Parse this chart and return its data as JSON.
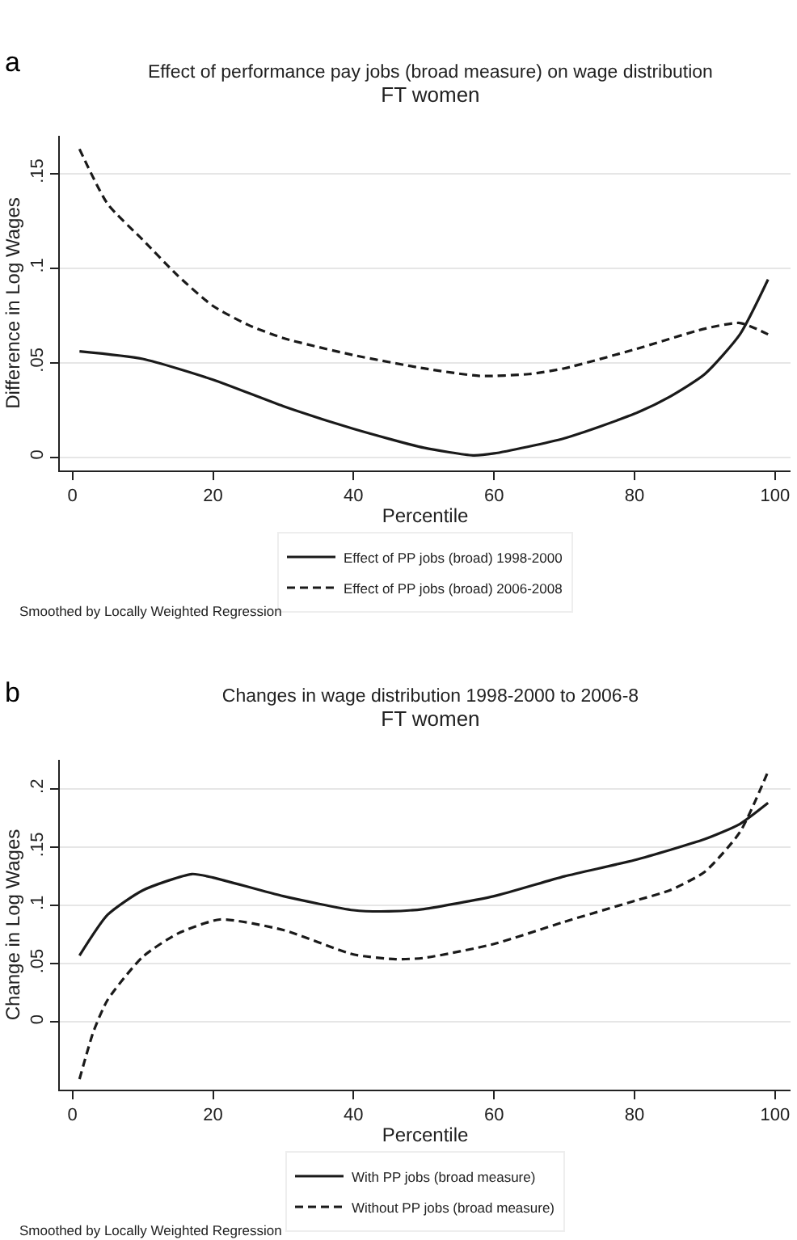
{
  "chart_data": [
    {
      "type": "line",
      "title": "Effect of performance pay jobs (broad measure) on wage distribution",
      "subtitle": "FT women",
      "xlabel": "Percentile",
      "ylabel": "Difference in Log Wages",
      "annotations": [
        "a",
        "Smoothed by Locally Weighted Regression"
      ],
      "xlim": [
        -1.8,
        102.2
      ],
      "xticks": [
        0,
        20,
        40,
        60,
        80,
        100
      ],
      "ylim": [
        -0.007,
        0.17
      ],
      "yticks": [
        0,
        {
          "value": 0.05,
          "label": ".05"
        },
        {
          "value": 0.1,
          "label": ".1"
        },
        {
          "value": 0.15,
          "label": ".15"
        }
      ],
      "grid": "y",
      "legend": "bottom",
      "series": [
        {
          "name": "Effect of PP jobs (broad) 1998-2000",
          "color": "#1a1a1a",
          "line_style": "solid",
          "x": [
            1,
            10,
            20,
            30,
            40,
            50,
            57,
            60,
            70,
            80,
            85,
            90,
            95,
            99
          ],
          "values": [
            0.056,
            0.052,
            0.041,
            0.027,
            0.015,
            0.005,
            0.001,
            0.002,
            0.01,
            0.023,
            0.032,
            0.044,
            0.065,
            0.094
          ]
        },
        {
          "name": "Effect of PP jobs (broad) 2006-2008",
          "color": "#1a1a1a",
          "line_style": "dashed",
          "x": [
            1,
            5,
            10,
            15,
            20,
            25,
            30,
            40,
            50,
            58,
            65,
            70,
            80,
            90,
            95,
            99
          ],
          "values": [
            0.163,
            0.134,
            0.115,
            0.096,
            0.08,
            0.07,
            0.063,
            0.054,
            0.047,
            0.043,
            0.044,
            0.047,
            0.057,
            0.068,
            0.071,
            0.065
          ]
        }
      ]
    },
    {
      "type": "line",
      "title": "Changes in wage distribution 1998-2000 to 2006-8",
      "subtitle": "FT women",
      "xlabel": "Percentile",
      "ylabel": "Change in Log Wages",
      "annotations": [
        "b",
        "Smoothed by Locally Weighted Regression"
      ],
      "xlim": [
        -1.8,
        102.2
      ],
      "xticks": [
        0,
        20,
        40,
        60,
        80,
        100
      ],
      "ylim": [
        -0.058,
        0.225
      ],
      "yticks": [
        0,
        {
          "value": 0.05,
          "label": ".05"
        },
        {
          "value": 0.1,
          "label": ".1"
        },
        {
          "value": 0.15,
          "label": ".15"
        },
        {
          "value": 0.2,
          "label": ".2"
        }
      ],
      "grid": "y",
      "legend": "bottom",
      "series": [
        {
          "name": "With PP jobs (broad measure)",
          "color": "#1a1a1a",
          "line_style": "solid",
          "x": [
            1,
            5,
            10,
            17,
            20,
            30,
            40,
            45,
            50,
            60,
            70,
            80,
            90,
            95,
            99
          ],
          "values": [
            0.057,
            0.092,
            0.113,
            0.127,
            0.124,
            0.108,
            0.096,
            0.095,
            0.097,
            0.108,
            0.125,
            0.139,
            0.157,
            0.17,
            0.188
          ]
        },
        {
          "name": "Without PP jobs (broad measure)",
          "color": "#1a1a1a",
          "line_style": "dashed",
          "x": [
            1,
            3,
            5,
            10,
            15,
            21,
            30,
            40,
            46,
            50,
            60,
            70,
            80,
            85,
            90,
            95,
            99
          ],
          "values": [
            -0.049,
            -0.008,
            0.019,
            0.056,
            0.076,
            0.088,
            0.079,
            0.058,
            0.054,
            0.055,
            0.067,
            0.086,
            0.104,
            0.113,
            0.129,
            0.163,
            0.215
          ]
        }
      ]
    }
  ]
}
